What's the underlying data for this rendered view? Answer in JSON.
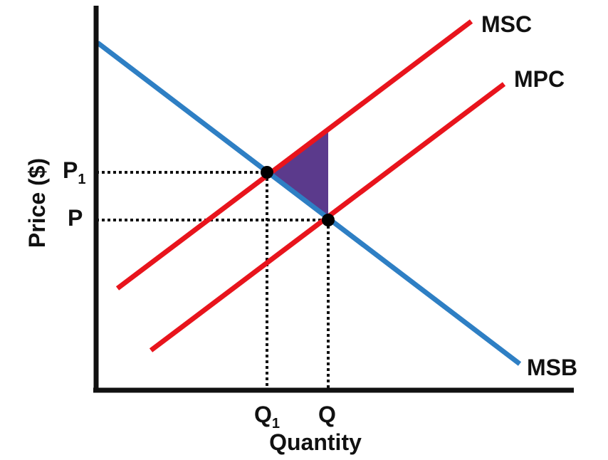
{
  "axes": {
    "y_label": "Price ($)",
    "x_label": "Quantity"
  },
  "ticks": {
    "p1": {
      "main": "P",
      "sub": "1"
    },
    "p": {
      "main": "P"
    },
    "q1": {
      "main": "Q",
      "sub": "1"
    },
    "q": {
      "main": "Q"
    }
  },
  "curves": {
    "msc": {
      "label": "MSC",
      "color": "#e8141c"
    },
    "mpc": {
      "label": "MPC",
      "color": "#e8141c"
    },
    "msb": {
      "label": "MSB",
      "color": "#2e7fc4"
    }
  },
  "colors": {
    "axis": "#111111",
    "guide": "#111111",
    "point": "#000000",
    "deadweight_loss": "#5b3a8c"
  }
}
